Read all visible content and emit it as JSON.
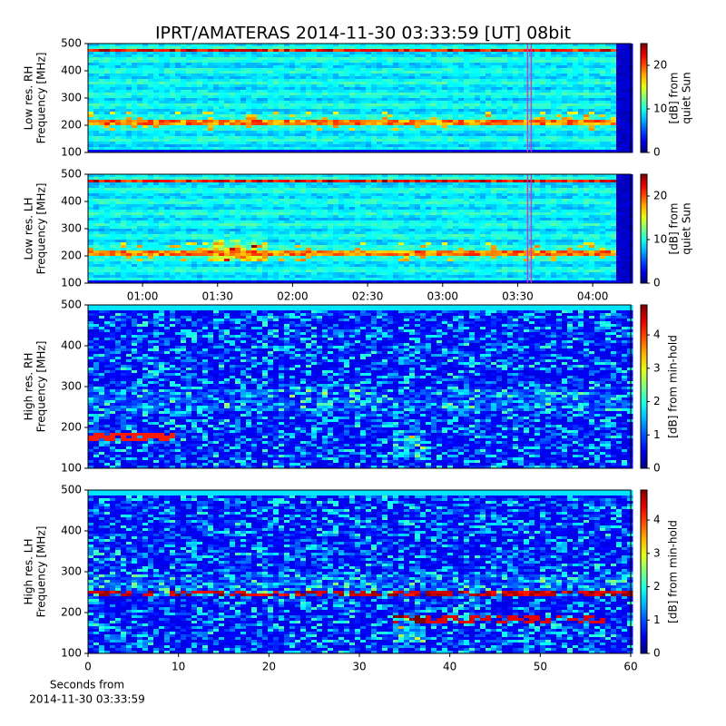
{
  "title": "IPRT/AMATERAS 2014-11-30 03:33:59 [UT]   08bit",
  "chart_data": [
    {
      "type": "heatmap",
      "colormap": "jet",
      "y_label": [
        "Low res. RH",
        "Frequency [MHz]"
      ],
      "ylim": [
        100,
        500
      ],
      "yticks": [
        100,
        200,
        300,
        400,
        500
      ],
      "xlim": [
        38.2,
        255.2
      ],
      "clim": [
        0,
        25
      ],
      "cticks": [
        0,
        10,
        20
      ],
      "colorbar_label": [
        "[dB] from",
        "quiet Sun"
      ],
      "highlight": {
        "x": 213.98,
        "color": "#c040d0"
      }
    },
    {
      "type": "heatmap",
      "colormap": "jet",
      "y_label": [
        "Low res. LH",
        "Frequency [MHz]"
      ],
      "ylim": [
        100,
        500
      ],
      "yticks": [
        100,
        200,
        300,
        400,
        500
      ],
      "xlim": [
        38.2,
        255.2
      ],
      "xticks": [
        {
          "value": 60,
          "label": "01:00"
        },
        {
          "value": 90,
          "label": "01:30"
        },
        {
          "value": 120,
          "label": "02:00"
        },
        {
          "value": 150,
          "label": "02:30"
        },
        {
          "value": 180,
          "label": "03:00"
        },
        {
          "value": 210,
          "label": "03:30"
        },
        {
          "value": 240,
          "label": "04:00"
        }
      ],
      "clim": [
        0,
        25
      ],
      "cticks": [
        0,
        10,
        20
      ],
      "colorbar_label": [
        "[dB] from",
        "quiet Sun"
      ],
      "highlight": {
        "x": 213.98,
        "color": "#c040d0"
      }
    },
    {
      "type": "heatmap",
      "colormap": "jet",
      "y_label": [
        "High res. RH",
        "Frequency [MHz]"
      ],
      "ylim": [
        100,
        500
      ],
      "yticks": [
        100,
        200,
        300,
        400,
        500
      ],
      "xlim": [
        0,
        60
      ],
      "clim": [
        0,
        4.9
      ],
      "cticks": [
        0,
        1,
        2,
        3,
        4
      ],
      "colorbar_label": [
        "[dB] from min-hold"
      ]
    },
    {
      "type": "heatmap",
      "colormap": "jet",
      "y_label": [
        "High res. LH",
        "Frequency [MHz]"
      ],
      "ylim": [
        100,
        500
      ],
      "yticks": [
        100,
        200,
        300,
        400,
        500
      ],
      "xlim": [
        0,
        60
      ],
      "xticks": [
        0,
        10,
        20,
        30,
        40,
        50,
        60
      ],
      "x_label": [
        "Seconds from",
        "2014-11-30 03:33:59"
      ],
      "clim": [
        0,
        4.9
      ],
      "cticks": [
        0,
        1,
        2,
        3,
        4
      ],
      "colorbar_label": [
        "[dB] from min-hold"
      ]
    }
  ]
}
